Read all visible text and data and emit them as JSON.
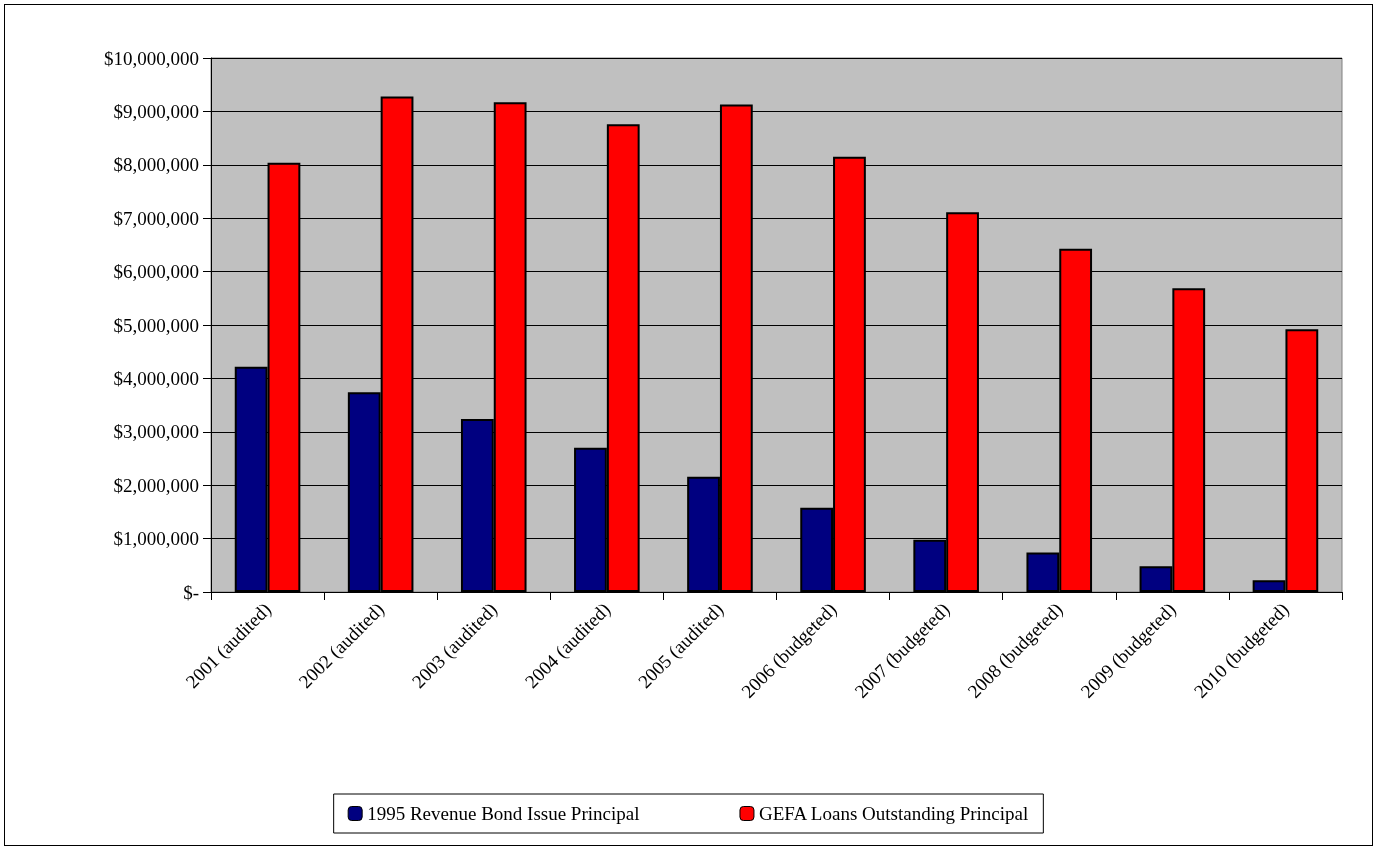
{
  "chart_data": {
    "type": "bar",
    "categories": [
      "2001 (audited)",
      "2002 (audited)",
      "2003 (audited)",
      "2004 (audited)",
      "2005 (audited)",
      "2006 (budgeted)",
      "2007 (budgeted)",
      "2008 (budgeted)",
      "2009 (budgeted)",
      "2010 (budgeted)"
    ],
    "series": [
      {
        "name": "1995 Revenue Bond Issue Principal",
        "color": "#000080",
        "values": [
          4220000,
          3740000,
          3240000,
          2700000,
          2160000,
          1580000,
          980000,
          740000,
          480000,
          220000
        ]
      },
      {
        "name": "GEFA Loans Outstanding Principal",
        "color": "#ff0000",
        "values": [
          8040000,
          9280000,
          9170000,
          8760000,
          9130000,
          8150000,
          7110000,
          6430000,
          5690000,
          4920000
        ]
      }
    ],
    "ylim": [
      0,
      10000000
    ],
    "yticks": [
      {
        "value": 0,
        "label": "$-"
      },
      {
        "value": 1000000,
        "label": "$1,000,000"
      },
      {
        "value": 2000000,
        "label": "$2,000,000"
      },
      {
        "value": 3000000,
        "label": "$3,000,000"
      },
      {
        "value": 4000000,
        "label": "$4,000,000"
      },
      {
        "value": 5000000,
        "label": "$5,000,000"
      },
      {
        "value": 6000000,
        "label": "$6,000,000"
      },
      {
        "value": 7000000,
        "label": "$7,000,000"
      },
      {
        "value": 8000000,
        "label": "$8,000,000"
      },
      {
        "value": 9000000,
        "label": "$9,000,000"
      },
      {
        "value": 10000000,
        "label": "$10,000,000"
      }
    ],
    "grid": "y",
    "legend": "bottom"
  }
}
